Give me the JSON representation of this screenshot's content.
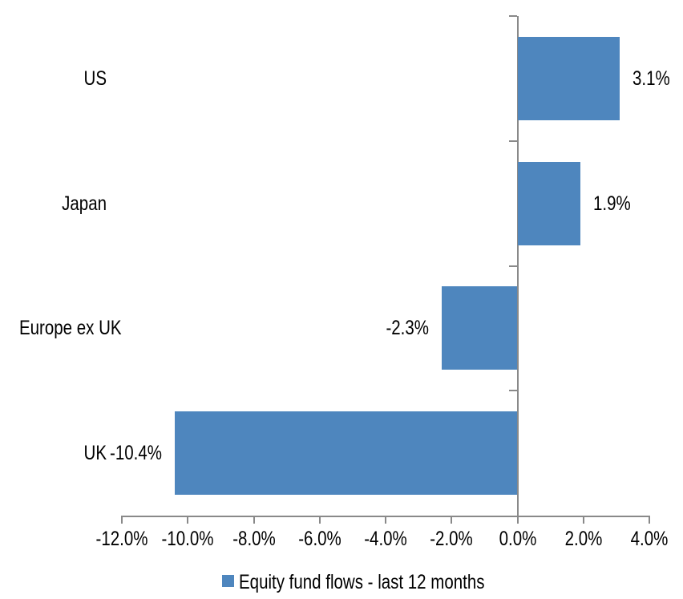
{
  "chart_data": {
    "type": "bar",
    "orientation": "horizontal",
    "title": "",
    "categories": [
      "US",
      "Japan",
      "Europe ex UK",
      "UK"
    ],
    "series": [
      {
        "name": "Equity fund flows - last 12 months",
        "values": [
          3.1,
          1.9,
          -2.3,
          -10.4
        ],
        "value_labels": [
          "3.1%",
          "1.9%",
          "-2.3%",
          "-10.4%"
        ],
        "color": "#4E86BE"
      }
    ],
    "xlim": [
      -12,
      4
    ],
    "x_ticks": [
      -12,
      -10,
      -8,
      -6,
      -4,
      -2,
      0,
      2,
      4
    ],
    "x_tick_labels": [
      "-12.0%",
      "-10.0%",
      "-8.0%",
      "-6.0%",
      "-4.0%",
      "-2.0%",
      "0.0%",
      "2.0%",
      "4.0%"
    ],
    "grid": false,
    "legend_position": "bottom",
    "axis_color": "#898989",
    "text_color": "#000000",
    "background": "#FFFFFF"
  },
  "legend": {
    "marker": "square-icon",
    "marker_color": "#4E86BE",
    "label": "Equity fund flows - last 12 months"
  }
}
